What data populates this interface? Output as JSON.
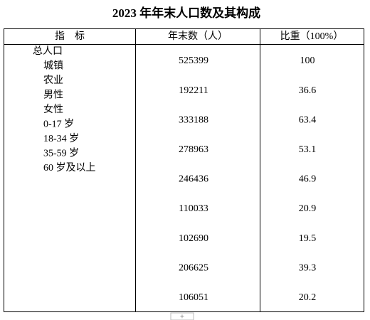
{
  "title": "2023 年年末人口数及其构成",
  "table": {
    "headers": [
      "指　标",
      "年末数（人）",
      "比重（100%）"
    ],
    "indicators": [
      "总人口",
      "城镇",
      "农业",
      "男性",
      "女性",
      "0-17 岁",
      "18-34 岁",
      "35-59 岁",
      "60 岁及以上"
    ],
    "values": [
      525399,
      192211,
      333188,
      278963,
      246436,
      110033,
      102690,
      206625,
      106051
    ],
    "shares": [
      100,
      36.6,
      63.4,
      53.1,
      46.9,
      20.9,
      19.5,
      39.3,
      20.2
    ]
  }
}
